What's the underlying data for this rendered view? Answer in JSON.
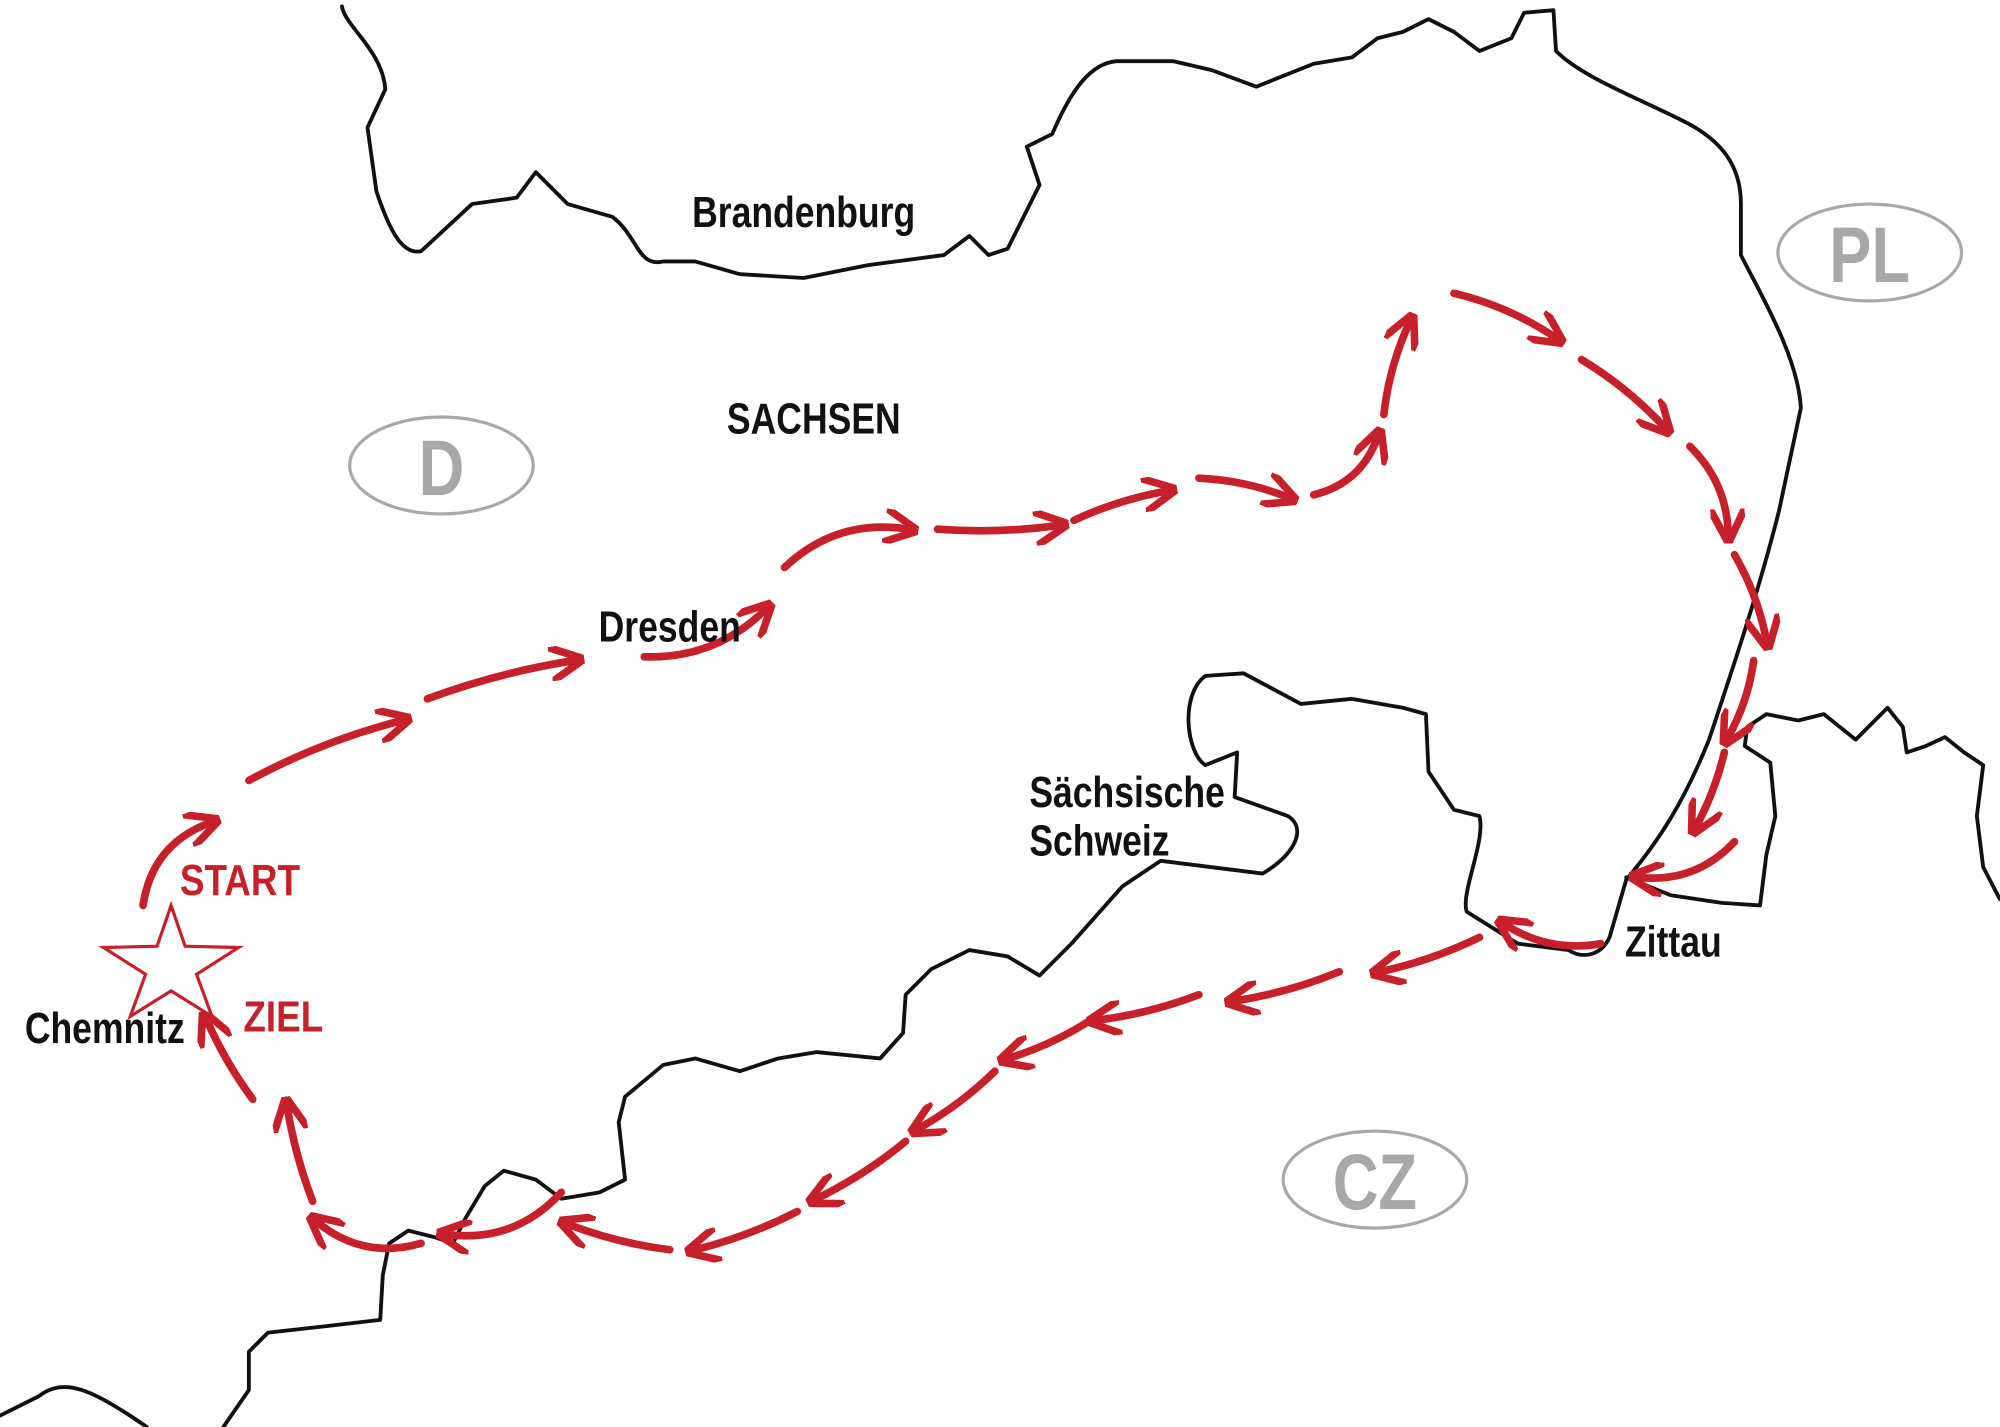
{
  "map": {
    "region_label": "SACHSEN",
    "neighbor_label": "Brandenburg",
    "countries": [
      {
        "code": "D"
      },
      {
        "code": "PL"
      },
      {
        "code": "CZ"
      }
    ],
    "places": {
      "dresden": "Dresden",
      "saechsische_schweiz_line1": "Sächsische",
      "saechsische_schweiz_line2": "Schweiz",
      "zittau": "Zittau",
      "chemnitz": "Chemnitz"
    },
    "route": {
      "start_label": "START",
      "finish_label": "ZIEL",
      "marker_icon": "star-icon",
      "direction": "clockwise",
      "color": "#c8202a"
    },
    "colors": {
      "border": "#111111",
      "country_oval": "#a8a8a8"
    }
  }
}
